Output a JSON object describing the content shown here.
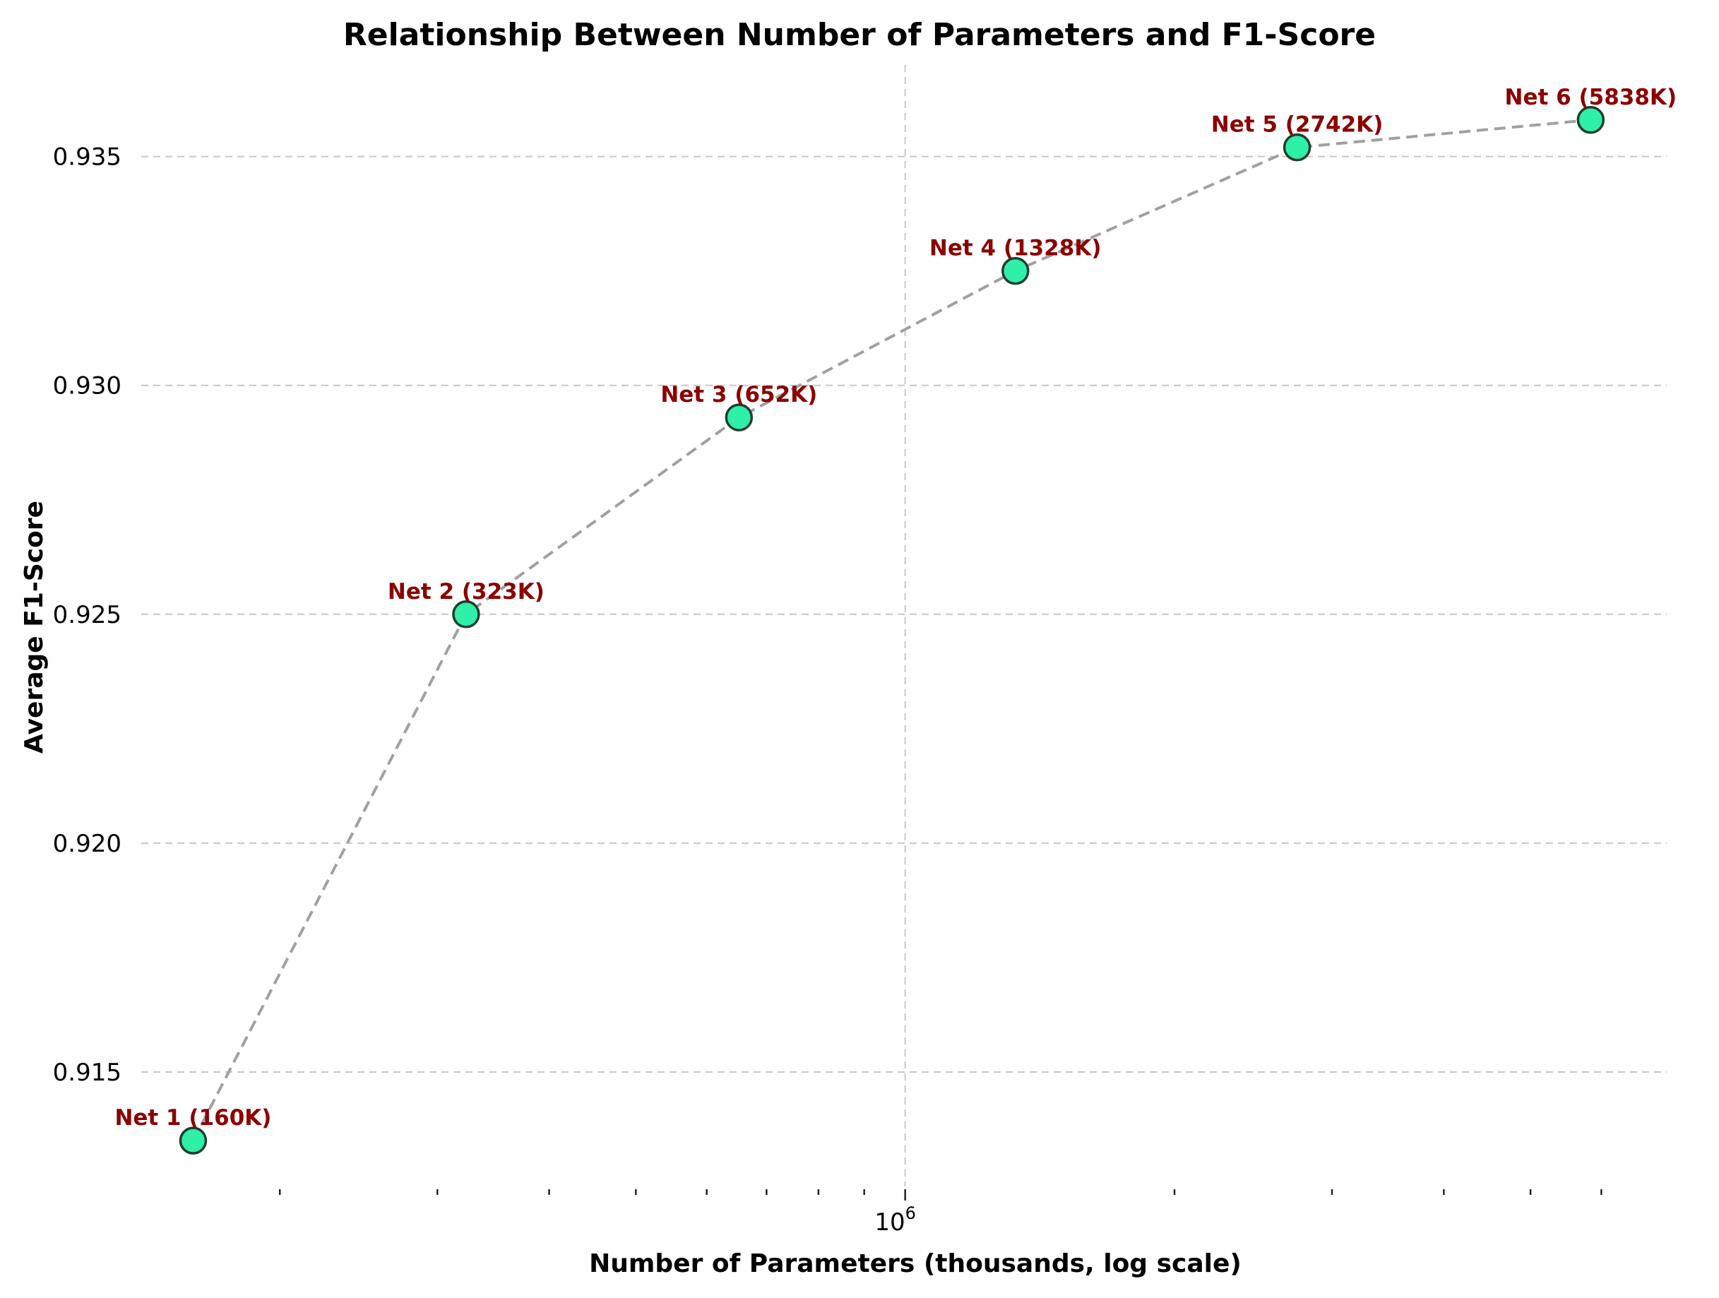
{
  "chart_data": {
    "type": "scatter",
    "title": "Relationship Between Number of Parameters and F1-Score",
    "xlabel": "Number of Parameters (thousands, log scale)",
    "ylabel": "Average F1-Score",
    "xscale": "log",
    "xlim": [
      140000,
      7100000
    ],
    "ylim": [
      0.9125,
      0.937
    ],
    "x_major_tick_labels": [
      {
        "value": 1000000,
        "base": "10",
        "exponent": "6"
      }
    ],
    "x_minor_ticks": [
      200000,
      300000,
      400000,
      500000,
      600000,
      700000,
      800000,
      900000,
      2000000,
      3000000,
      4000000,
      5000000,
      6000000
    ],
    "y_ticks": [
      0.915,
      0.92,
      0.925,
      0.93,
      0.935
    ],
    "y_tick_labels": [
      "0.915",
      "0.920",
      "0.925",
      "0.930",
      "0.935"
    ],
    "grid": true,
    "marker_color": "#2ef0a8",
    "label_color": "#8b0000",
    "line_color": "#a0a0a0",
    "points": [
      {
        "label": "Net 1 (160K)",
        "x": 160000,
        "y": 0.9135
      },
      {
        "label": "Net 2 (323K)",
        "x": 323000,
        "y": 0.925
      },
      {
        "label": "Net 3 (652K)",
        "x": 652000,
        "y": 0.9293
      },
      {
        "label": "Net 4 (1328K)",
        "x": 1328000,
        "y": 0.9325
      },
      {
        "label": "Net 5 (2742K)",
        "x": 2742000,
        "y": 0.9352
      },
      {
        "label": "Net 6 (5838K)",
        "x": 5838000,
        "y": 0.9358
      }
    ]
  }
}
